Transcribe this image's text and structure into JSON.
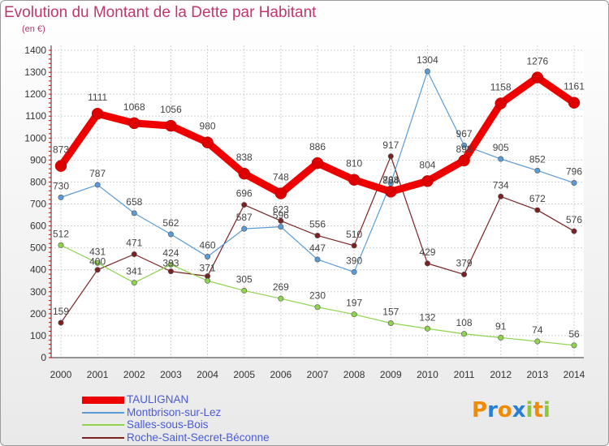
{
  "title": "Evolution du Montant de la Dette par Habitant",
  "unit": "(en €)",
  "logo": {
    "letters": [
      "P",
      "r",
      "o",
      "x",
      "i",
      "t",
      "i"
    ],
    "colors": [
      "#f08a00",
      "#2a7fd4",
      "#f08a00",
      "#2a7fd4",
      "#8cc63f",
      "#f08a00",
      "#8cc63f"
    ]
  },
  "chart_data": {
    "type": "line",
    "x": [
      "2000",
      "2001",
      "2002",
      "2003",
      "2004",
      "2005",
      "2006",
      "2007",
      "2008",
      "2009",
      "2010",
      "2011",
      "2012",
      "2013",
      "2014"
    ],
    "ylim": [
      0,
      1400
    ],
    "yticks": [
      "0",
      "100",
      "200",
      "300",
      "400",
      "500",
      "600",
      "700",
      "800",
      "900",
      "1000",
      "1100",
      "1200",
      "1300",
      "1400"
    ],
    "grid": true,
    "legend_position": "bottom",
    "series": [
      {
        "name": "TAULIGNAN",
        "color": "#ee0000",
        "values": [
          873,
          1111,
          1068,
          1056,
          980,
          838,
          748,
          886,
          810,
          756,
          804,
          898,
          1158,
          1276,
          1161
        ],
        "labels": [
          "873",
          "1111",
          "1068",
          "1056",
          "980",
          "838",
          "748",
          "886",
          "810",
          "",
          "804",
          "",
          "1158",
          "1276",
          "1161"
        ]
      },
      {
        "name": "Montbrison-sur-Lez",
        "color": "#5b9bd5",
        "values": [
          730,
          787,
          658,
          562,
          460,
          587,
          596,
          447,
          390,
          794,
          1304,
          967,
          905,
          852,
          796
        ],
        "labels": [
          "730",
          "787",
          "658",
          "562",
          "460",
          "587",
          "596",
          "447",
          "390",
          "",
          "1304",
          "967",
          "905",
          "852",
          "796"
        ]
      },
      {
        "name": "Salles-sous-Bois",
        "color": "#8fd44c",
        "values": [
          512,
          431,
          341,
          424,
          350,
          305,
          269,
          230,
          197,
          157,
          132,
          108,
          91,
          74,
          56
        ],
        "labels": [
          "512",
          "431",
          "341",
          "424",
          "",
          "305",
          "269",
          "230",
          "197",
          "157",
          "132",
          "108",
          "91",
          "74",
          "56"
        ]
      },
      {
        "name": "Roche-Saint-Secret-Béconnne",
        "color": "#7a2222",
        "values": [
          159,
          400,
          471,
          393,
          371,
          696,
          623,
          556,
          510,
          917,
          429,
          379,
          734,
          672,
          576
        ],
        "labels": [
          "159",
          "400",
          "471",
          "393",
          "371",
          "696",
          "623",
          "556",
          "510",
          "917",
          "429",
          "379",
          "734",
          "672",
          "576"
        ]
      }
    ],
    "extra_labels": [
      "804",
      "788",
      "898",
      "393",
      "371"
    ]
  }
}
